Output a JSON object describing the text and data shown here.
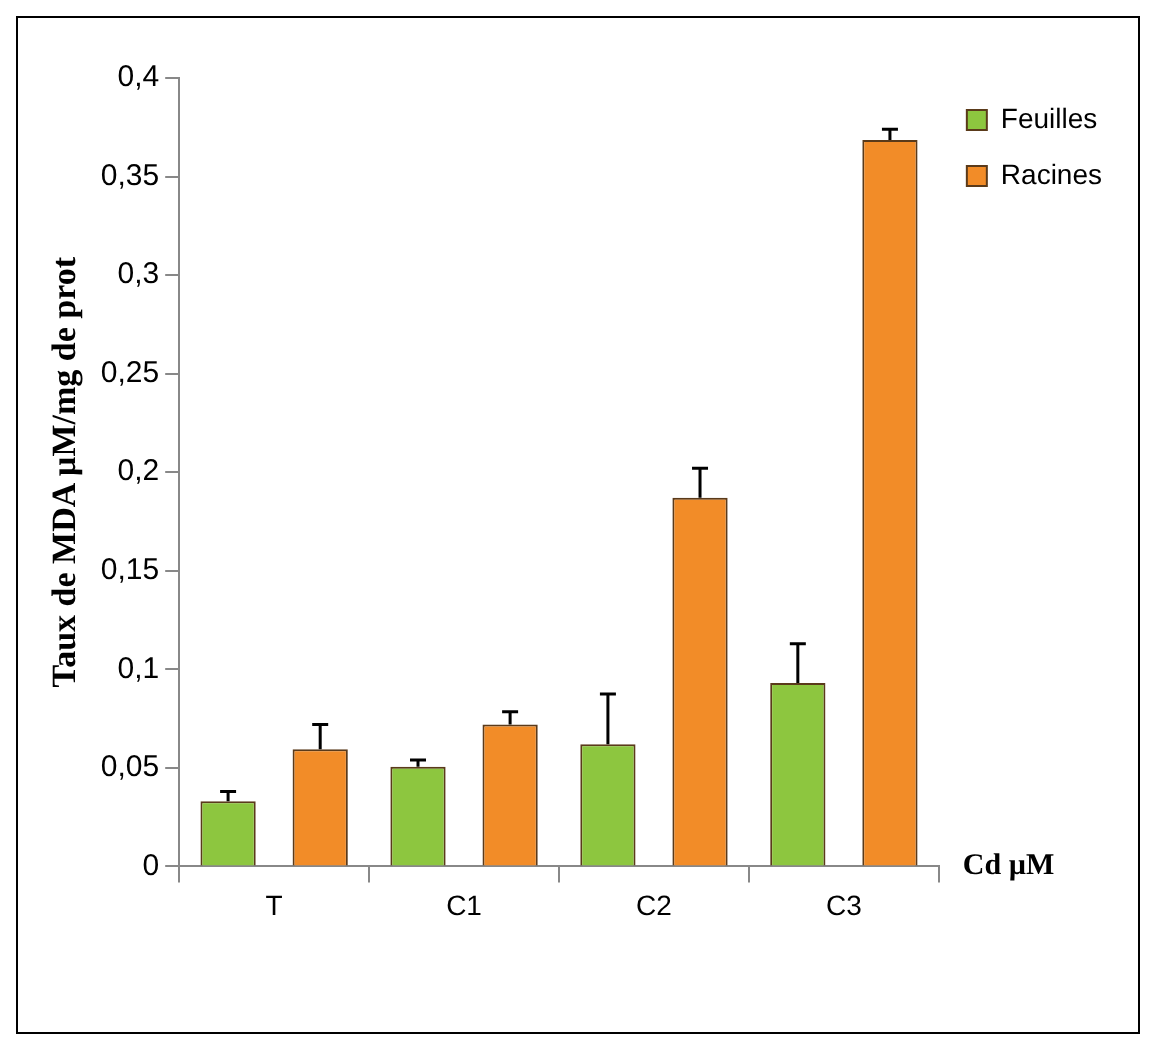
{
  "chart_data": {
    "type": "bar",
    "ylabel": "Taux de MDA µM/mg de prot",
    "xlabel": "Cd µM",
    "categories": [
      "T",
      "C1",
      "C2",
      "C3"
    ],
    "series": [
      {
        "name": "Feuilles",
        "color": "#8dc63f",
        "values": [
          0.033,
          0.0505,
          0.062,
          0.093
        ],
        "errors": [
          [
            0.033,
            0.038
          ],
          [
            0.0505,
            0.054
          ],
          [
            0.062,
            0.0875
          ],
          [
            0.093,
            0.113
          ]
        ]
      },
      {
        "name": "Racines",
        "color": "#f28c28",
        "values": [
          0.0595,
          0.072,
          0.187,
          0.3685
        ],
        "errors": [
          [
            0.0595,
            0.072
          ],
          [
            0.072,
            0.0785
          ],
          [
            0.187,
            0.202
          ],
          [
            0.3685,
            0.374
          ]
        ]
      }
    ],
    "ylim": [
      0,
      0.4
    ],
    "yticks": [
      0,
      {
        "value": 0.05,
        "label": "0,05"
      },
      {
        "value": 0.1,
        "label": "0,1"
      },
      {
        "value": 0.15,
        "label": "0,15"
      },
      {
        "value": 0.2,
        "label": "0,2"
      },
      {
        "value": 0.25,
        "label": "0,25"
      },
      {
        "value": 0.3,
        "label": "0,3"
      },
      {
        "value": 0.35,
        "label": "0,35"
      },
      {
        "value": 0.4,
        "label": "0,4"
      }
    ],
    "grid": false,
    "legend": "top right"
  }
}
